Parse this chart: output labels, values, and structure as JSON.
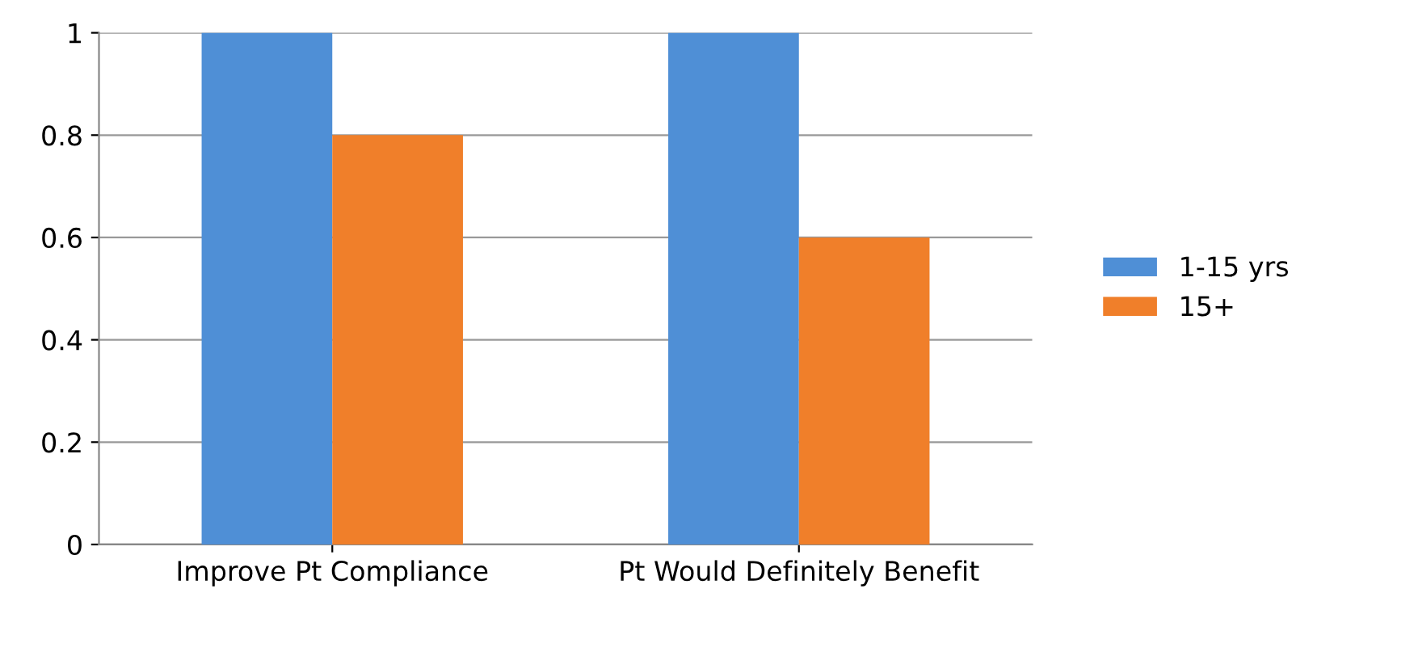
{
  "chart_data": {
    "type": "bar",
    "categories": [
      "Improve Pt Compliance",
      "Pt Would Definitely Benefit"
    ],
    "series": [
      {
        "name": "1-15 yrs",
        "color": "#4f8fd6",
        "values": [
          1,
          1
        ]
      },
      {
        "name": "15+",
        "color": "#f07f2a",
        "values": [
          0.8,
          0.6
        ]
      }
    ],
    "ylim": [
      0,
      1
    ],
    "yticks": [
      0,
      0.2,
      0.4,
      0.6,
      0.8,
      1
    ],
    "grid": "y",
    "legend": "right"
  }
}
